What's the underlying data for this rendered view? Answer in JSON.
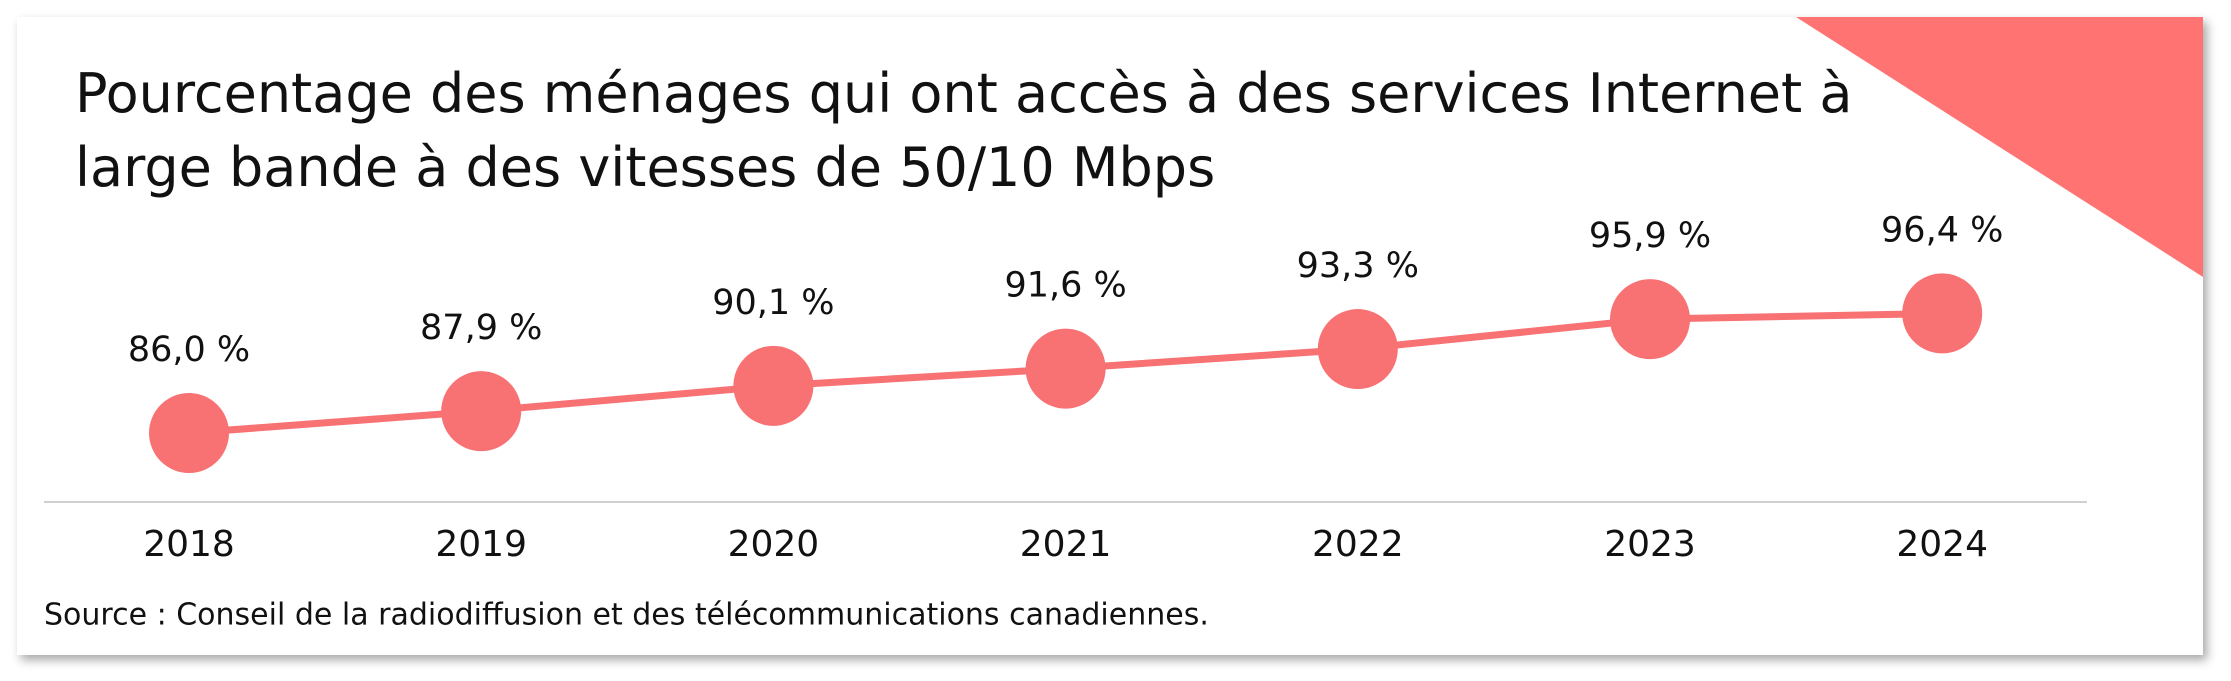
{
  "chart_data": {
    "type": "line",
    "title": [
      "Pourcentage des ménages qui ont accès à des services Internet à",
      "large bande à des vitesses de 50/10 Mbps"
    ],
    "categories": [
      "2018",
      "2019",
      "2020",
      "2021",
      "2022",
      "2023",
      "2024"
    ],
    "values": [
      86.0,
      87.9,
      90.1,
      91.6,
      93.3,
      95.9,
      96.4
    ],
    "value_labels": [
      "86,0 %",
      "87,9 %",
      "90,1 %",
      "91,6 %",
      "93,3 %",
      "95,9 %",
      "96,4 %"
    ],
    "color": "#f87173",
    "ylim": [
      80,
      100
    ],
    "source": "Source : Conseil de la radiodiffusion et des télécommunications canadiennes."
  }
}
